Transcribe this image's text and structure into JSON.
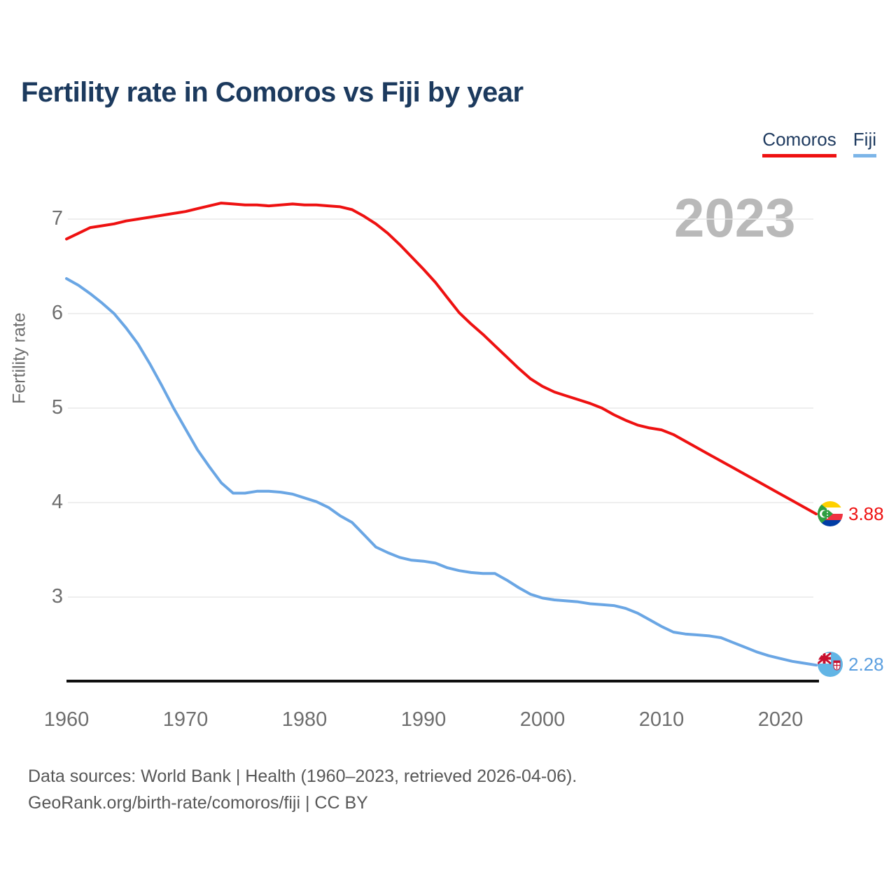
{
  "title": "Fertility rate in Comoros vs Fiji by year",
  "watermark": "2023",
  "legend": {
    "position": "top-right",
    "items": [
      {
        "label": "Comoros",
        "color": "#ee1111"
      },
      {
        "label": "Fiji",
        "color": "#7cb5e8"
      }
    ]
  },
  "colors": {
    "title": "#1c3a5e",
    "comoros_line": "#ee1111",
    "fiji_line": "#6aa6e4",
    "fiji_value_text": "#5b9fe0",
    "axis_text": "#6e6e6e",
    "watermark": "#b9b9b9",
    "gridline": "#e8e8e8",
    "axis_line": "#0f0f0f",
    "footer_text": "#575757"
  },
  "end_labels": [
    {
      "series": "Comoros",
      "value": "3.88",
      "flag_icon": "comoros-flag-icon"
    },
    {
      "series": "Fiji",
      "value": "2.28",
      "flag_icon": "fiji-flag-icon"
    }
  ],
  "footer": {
    "line1": "Data sources: World Bank | Health (1960–2023, retrieved 2026-04-06).",
    "line2": "GeoRank.org/birth-rate/comoros/fiji | CC BY"
  },
  "chart_data": {
    "type": "line",
    "title": "Fertility rate in Comoros vs Fiji by year",
    "xlabel": "",
    "ylabel": "Fertility rate",
    "xlim": [
      1960,
      2023
    ],
    "ylim_displayed": [
      2.1,
      7.35
    ],
    "grid": "horizontal",
    "legend_position": "top-right",
    "yticks": [
      7,
      6,
      5,
      4,
      3
    ],
    "xticks": [
      1960,
      1970,
      1980,
      1990,
      2000,
      2010,
      2020
    ],
    "x": [
      1960,
      1961,
      1962,
      1963,
      1964,
      1965,
      1966,
      1967,
      1968,
      1969,
      1970,
      1971,
      1972,
      1973,
      1974,
      1975,
      1976,
      1977,
      1978,
      1979,
      1980,
      1981,
      1982,
      1983,
      1984,
      1985,
      1986,
      1987,
      1988,
      1989,
      1990,
      1991,
      1992,
      1993,
      1994,
      1995,
      1996,
      1997,
      1998,
      1999,
      2000,
      2001,
      2002,
      2003,
      2004,
      2005,
      2006,
      2007,
      2008,
      2009,
      2010,
      2011,
      2012,
      2013,
      2014,
      2015,
      2016,
      2017,
      2018,
      2019,
      2020,
      2021,
      2022,
      2023
    ],
    "series": [
      {
        "name": "Comoros",
        "color": "#ee1111",
        "final_value": 3.88,
        "values": [
          6.79,
          6.85,
          6.91,
          6.93,
          6.95,
          6.98,
          7.0,
          7.02,
          7.04,
          7.06,
          7.08,
          7.11,
          7.14,
          7.17,
          7.16,
          7.15,
          7.15,
          7.14,
          7.15,
          7.16,
          7.15,
          7.15,
          7.14,
          7.13,
          7.1,
          7.03,
          6.95,
          6.85,
          6.73,
          6.6,
          6.47,
          6.33,
          6.17,
          6.01,
          5.89,
          5.78,
          5.66,
          5.54,
          5.42,
          5.31,
          5.23,
          5.17,
          5.13,
          5.09,
          5.05,
          5.0,
          4.93,
          4.87,
          4.82,
          4.79,
          4.77,
          4.72,
          4.65,
          4.58,
          4.51,
          4.44,
          4.37,
          4.3,
          4.23,
          4.16,
          4.09,
          4.02,
          3.95,
          3.88
        ]
      },
      {
        "name": "Fiji",
        "color": "#6aa6e4",
        "final_value": 2.28,
        "values": [
          6.37,
          6.3,
          6.21,
          6.11,
          6.0,
          5.85,
          5.68,
          5.47,
          5.24,
          5.0,
          4.78,
          4.56,
          4.38,
          4.21,
          4.1,
          4.1,
          4.12,
          4.12,
          4.11,
          4.09,
          4.05,
          4.01,
          3.95,
          3.86,
          3.79,
          3.66,
          3.53,
          3.47,
          3.42,
          3.39,
          3.38,
          3.36,
          3.31,
          3.28,
          3.26,
          3.25,
          3.25,
          3.18,
          3.1,
          3.03,
          2.99,
          2.97,
          2.96,
          2.95,
          2.93,
          2.92,
          2.91,
          2.88,
          2.83,
          2.76,
          2.69,
          2.63,
          2.61,
          2.6,
          2.59,
          2.57,
          2.52,
          2.47,
          2.42,
          2.38,
          2.35,
          2.32,
          2.3,
          2.28
        ]
      }
    ]
  }
}
